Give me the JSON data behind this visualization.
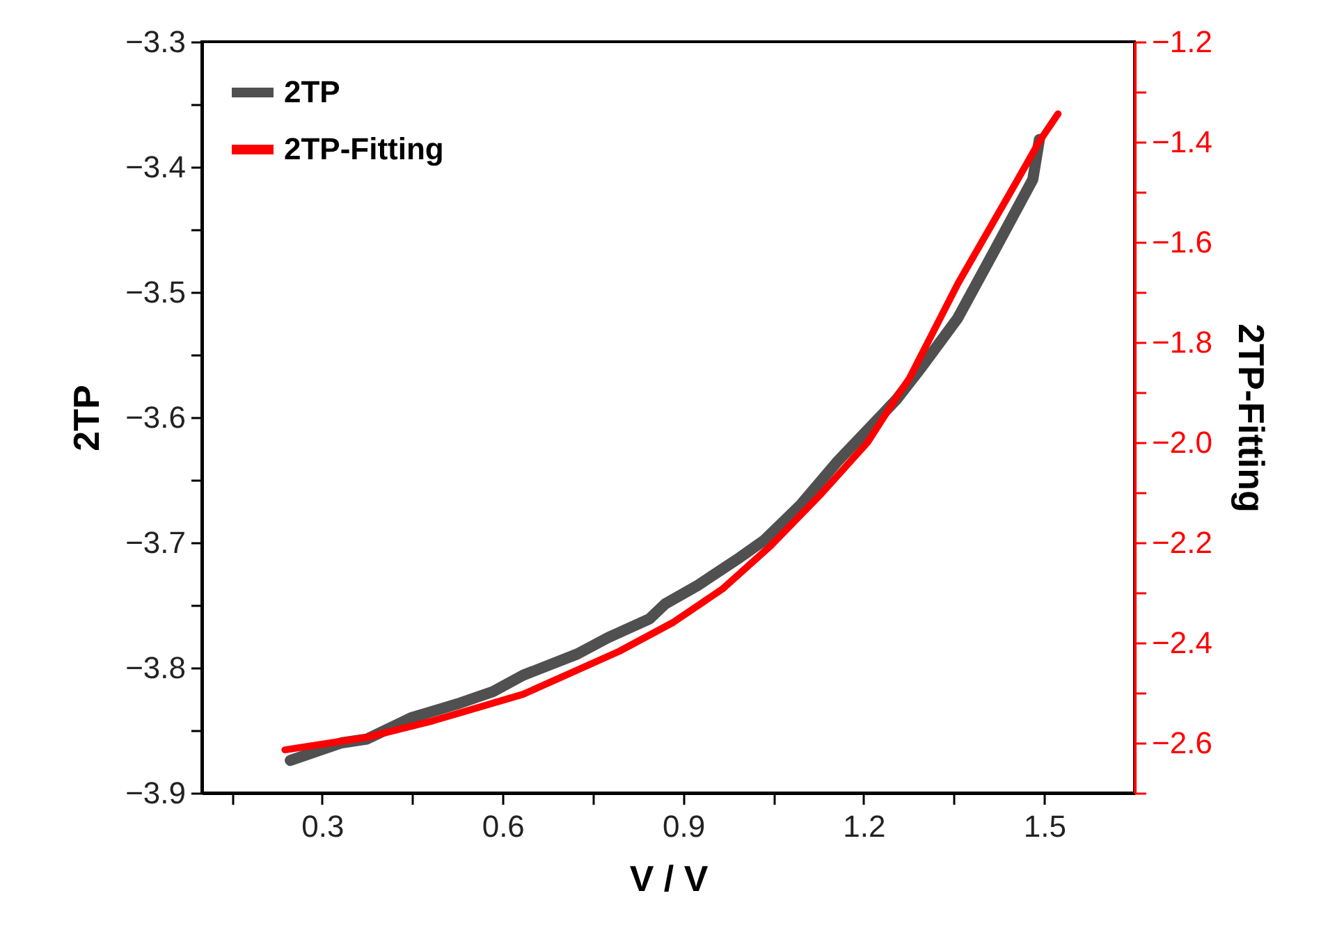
{
  "chart_data": {
    "type": "line",
    "xlabel": "V / V",
    "ylabel": "2TP",
    "y2label": "2TP-Fitting",
    "xlim": [
      0.1,
      1.65
    ],
    "xticks": [
      {
        "value": 0.15,
        "label": null
      },
      {
        "value": 0.3,
        "label": "0.3"
      },
      {
        "value": 0.45,
        "label": null
      },
      {
        "value": 0.6,
        "label": "0.6"
      },
      {
        "value": 0.75,
        "label": null
      },
      {
        "value": 0.9,
        "label": "0.9"
      },
      {
        "value": 1.05,
        "label": null
      },
      {
        "value": 1.2,
        "label": "1.2"
      },
      {
        "value": 1.35,
        "label": null
      },
      {
        "value": 1.5,
        "label": "1.5"
      }
    ],
    "ylim": [
      -3.9,
      -3.3
    ],
    "yticks": [
      {
        "value": -3.9,
        "label": "−3.9"
      },
      {
        "value": -3.85,
        "label": null
      },
      {
        "value": -3.8,
        "label": "−3.8"
      },
      {
        "value": -3.75,
        "label": null
      },
      {
        "value": -3.7,
        "label": "−3.7"
      },
      {
        "value": -3.65,
        "label": null
      },
      {
        "value": -3.6,
        "label": "−3.6"
      },
      {
        "value": -3.55,
        "label": null
      },
      {
        "value": -3.5,
        "label": "−3.5"
      },
      {
        "value": -3.45,
        "label": null
      },
      {
        "value": -3.4,
        "label": "−3.4"
      },
      {
        "value": -3.35,
        "label": null
      },
      {
        "value": -3.3,
        "label": "−3.3"
      }
    ],
    "y2lim": [
      -2.7,
      -1.2
    ],
    "y2ticks": [
      {
        "value": -2.7,
        "label": null
      },
      {
        "value": -2.6,
        "label": "−2.6"
      },
      {
        "value": -2.5,
        "label": null
      },
      {
        "value": -2.4,
        "label": "−2.4"
      },
      {
        "value": -2.3,
        "label": null
      },
      {
        "value": -2.2,
        "label": "−2.2"
      },
      {
        "value": -2.1,
        "label": null
      },
      {
        "value": -2.0,
        "label": "−2.0"
      },
      {
        "value": -1.9,
        "label": null
      },
      {
        "value": -1.8,
        "label": "−1.8"
      },
      {
        "value": -1.7,
        "label": null
      },
      {
        "value": -1.6,
        "label": "−1.6"
      },
      {
        "value": -1.5,
        "label": null
      },
      {
        "value": -1.4,
        "label": "−1.4"
      },
      {
        "value": -1.3,
        "label": null
      },
      {
        "value": -1.2,
        "label": "−1.2"
      }
    ],
    "grid": false,
    "legend": "top left",
    "series": [
      {
        "name": "2TP",
        "color": "#505050",
        "x": [
          0.247,
          0.332,
          0.374,
          0.448,
          0.524,
          0.584,
          0.634,
          0.724,
          0.775,
          0.844,
          0.87,
          0.925,
          0.994,
          1.035,
          1.095,
          1.155,
          1.254,
          1.296,
          1.356,
          1.416,
          1.481,
          1.492
        ],
        "values": [
          -3.874,
          -3.86,
          -3.857,
          -3.84,
          -3.829,
          -3.819,
          -3.806,
          -3.789,
          -3.776,
          -3.761,
          -3.749,
          -3.734,
          -3.712,
          -3.698,
          -3.67,
          -3.636,
          -3.586,
          -3.56,
          -3.521,
          -3.468,
          -3.41,
          -3.378
        ]
      },
      {
        "name": "2TP-Fitting",
        "color": "#ff0000",
        "axis": "y2",
        "x": [
          0.238,
          0.374,
          0.484,
          0.634,
          0.794,
          0.884,
          0.965,
          1.045,
          1.126,
          1.207,
          1.256,
          1.276,
          1.357,
          1.438,
          1.493,
          1.523
        ],
        "values": [
          -2.614,
          -2.589,
          -2.556,
          -2.503,
          -2.417,
          -2.359,
          -2.293,
          -2.207,
          -2.107,
          -1.999,
          -1.907,
          -1.872,
          -1.682,
          -1.513,
          -1.397,
          -1.344
        ]
      }
    ]
  }
}
